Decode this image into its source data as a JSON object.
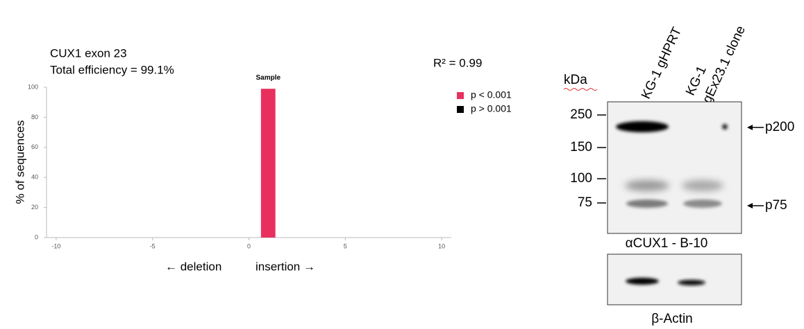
{
  "chart_data": {
    "type": "bar",
    "title": "CUX1 exon 23",
    "subtitle": "Total efficiency = 99.1%",
    "annotation": "R² = 0.99",
    "bar_label": "Sample",
    "ylabel": "% of sequences",
    "xlabel_left": "← deletion",
    "xlabel_right": "insertion →",
    "x": [
      1
    ],
    "series": [
      {
        "name": "p < 0.001",
        "color": "#e8305f",
        "values": [
          99
        ]
      }
    ],
    "legend_extra": {
      "name": "p > 0.001",
      "color": "#000000"
    },
    "xlim": [
      -10.5,
      10.5
    ],
    "xticks": [
      -10,
      -5,
      0,
      5,
      10
    ],
    "ylim": [
      0,
      100
    ],
    "yticks": [
      0,
      20,
      40,
      60,
      80,
      100
    ],
    "grid": false
  },
  "blot": {
    "unit": "kDa",
    "lanes": [
      "KG-1 gHPRT",
      "KG-1",
      "gEx23.1 clone"
    ],
    "markers": [
      "250",
      "150",
      "100",
      "75"
    ],
    "arrows": [
      "p200",
      "p75"
    ],
    "panels": [
      "αCUX1 - B-10",
      "β-Actin"
    ]
  }
}
